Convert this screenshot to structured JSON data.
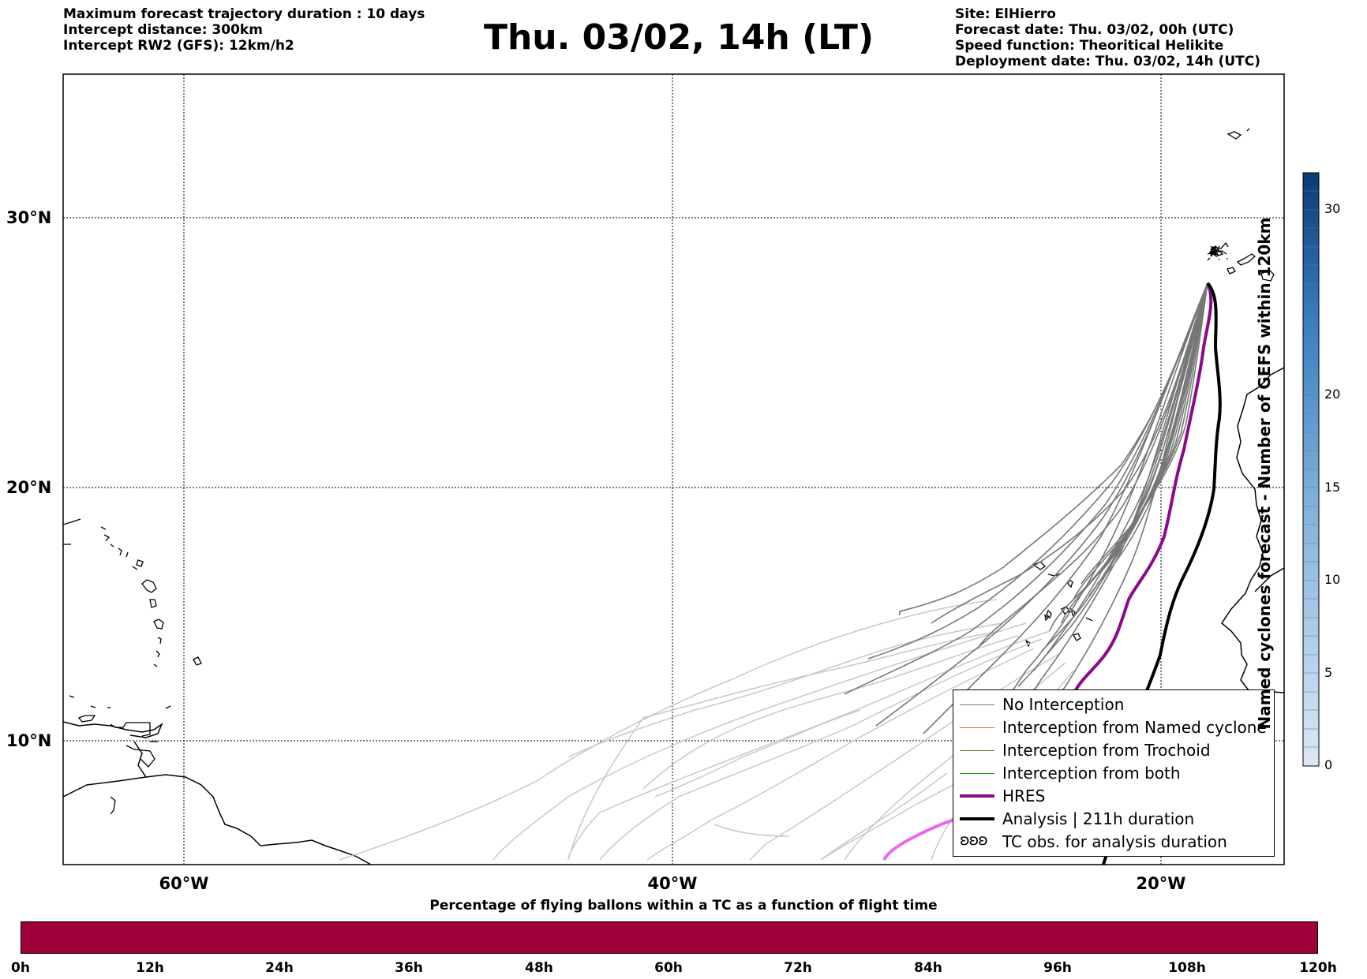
{
  "header_left": [
    "Maximum forecast trajectory duration : 10 days",
    "Intercept distance: 300km",
    "Intercept RW2 (GFS):  12km/h2"
  ],
  "title": "Thu. 03/02, 14h (LT)",
  "header_right": [
    "Site: ElHierro",
    "Forecast date: Thu. 03/02, 00h (UTC)",
    "Speed function: Theoritical Helikite",
    "Deployment date: Thu. 03/02, 14h (UTC)"
  ],
  "map": {
    "lat_labels": [
      "30°N",
      "20°N",
      "10°N"
    ],
    "lon_labels": [
      "60°W",
      "40°W",
      "20°W"
    ],
    "gridlines": true,
    "colors": {
      "no_interception": "#777777",
      "faded_trajectory": "#c8c8c8",
      "hres": "#8b0a8b",
      "hres_late": "#ee66ee",
      "analysis": "#000000",
      "coast": "#000000"
    }
  },
  "legend": {
    "items": [
      {
        "label": "No Interception",
        "color": "#777777",
        "style": "thin"
      },
      {
        "label": "Interception from Named cyclone",
        "color": "#ff5a1f",
        "style": "thin"
      },
      {
        "label": "Interception from Trochoid",
        "color": "#7a7a10",
        "style": "thin"
      },
      {
        "label": "Interception from both",
        "color": "#1a9a1a",
        "style": "thin"
      },
      {
        "label": "HRES",
        "color": "#8b0a8b",
        "style": "thick"
      },
      {
        "label": "Analysis | 211h duration",
        "color": "#000000",
        "style": "thick"
      },
      {
        "label": "TC obs. for analysis duration",
        "glyph": "ʚʚʚ",
        "style": "glyph"
      }
    ]
  },
  "vertical_colorbar": {
    "label": "Named cyclones forecast - Number of GEFS within 120km",
    "ticks": [
      "0",
      "5",
      "10",
      "15",
      "20",
      "30"
    ],
    "range": [
      0,
      32
    ]
  },
  "time_colorbar": {
    "title": "Percentage of flying ballons within a TC as a function of flight time",
    "color": "#9e003a",
    "ticks": [
      "0h",
      "12h",
      "24h",
      "36h",
      "48h",
      "60h",
      "72h",
      "84h",
      "96h",
      "108h",
      "120h"
    ]
  }
}
